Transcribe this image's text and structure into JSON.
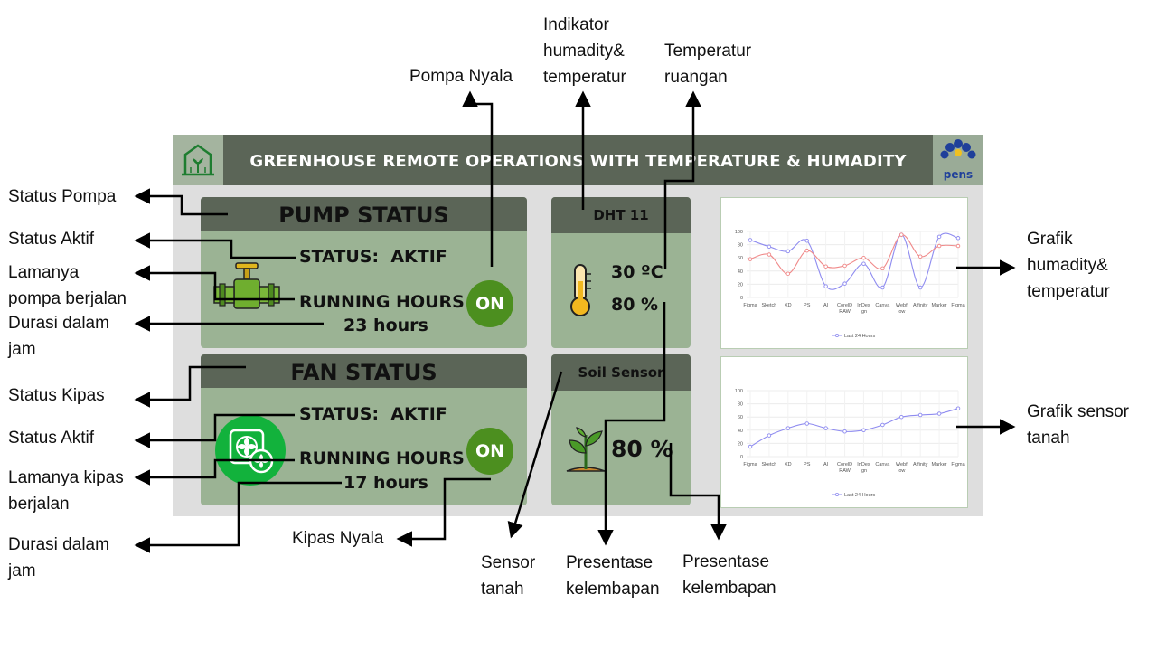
{
  "dashboard": {
    "title": "GREENHOUSE REMOTE OPERATIONS WITH TEMPERATURE & HUMADITY",
    "logo_right_text": "pens",
    "pump": {
      "title": "PUMP STATUS",
      "status_label": "STATUS:",
      "status_value": "AKTIF",
      "running_label": "RUNNING HOURS",
      "running_value": "23 hours",
      "button": "ON"
    },
    "fan": {
      "title": "FAN STATUS",
      "status_label": "STATUS:",
      "status_value": "AKTIF",
      "running_label": "RUNNING HOURS",
      "running_value": "17 hours",
      "button": "ON"
    },
    "dht": {
      "title": "DHT 11",
      "temperature": "30 ºC",
      "humidity": "80 %"
    },
    "soil": {
      "title": "Soil Sensor",
      "moisture": "80 %"
    }
  },
  "annotations": {
    "pompa_nyala": "Pompa Nyala",
    "indikator_1": "Indikator",
    "indikator_2": "humadity&",
    "indikator_3": "temperatur",
    "temperatur_1": "Temperatur",
    "temperatur_2": "ruangan",
    "status_pompa": "Status Pompa",
    "status_aktif_1": "Status Aktif",
    "lamanya_pompa_1": "Lamanya",
    "lamanya_pompa_2": "pompa berjalan",
    "durasi_1a": "Durasi dalam",
    "durasi_1b": "jam",
    "status_kipas": "Status Kipas",
    "status_aktif_2": "Status Aktif",
    "lamanya_kipas_1": "Lamanya kipas",
    "lamanya_kipas_2": "berjalan",
    "durasi_2a": "Durasi dalam",
    "durasi_2b": "jam",
    "kipas_nyala": "Kipas Nyala",
    "sensor_tanah_1": "Sensor",
    "sensor_tanah_2": "tanah",
    "presentase_1a": "Presentase",
    "presentase_1b": "kelembapan",
    "presentase_2a": "Presentase",
    "presentase_2b": "kelembapan",
    "grafik_hum_1": "Grafik",
    "grafik_hum_2": "humadity&",
    "grafik_hum_3": "temperatur",
    "grafik_tanah_1": "Grafik sensor",
    "grafik_tanah_2": "tanah"
  },
  "chart_data": [
    {
      "type": "line",
      "categories": [
        "Figma",
        "Sketch",
        "XD",
        "PS",
        "AI",
        "CorelD RAW",
        "InDes ign",
        "Canva",
        "Webf low",
        "Affinity",
        "Marker",
        "Figma"
      ],
      "ylim": [
        0,
        100
      ],
      "yticks": [
        0,
        20,
        40,
        60,
        80,
        100
      ],
      "series": [
        {
          "name": "Last 24 Hours",
          "color": "#8f8cf0",
          "values": [
            87,
            77,
            70,
            86,
            17,
            21,
            51,
            15,
            95,
            15,
            92,
            90
          ]
        },
        {
          "color": "#f08a8a",
          "values": [
            58,
            65,
            36,
            71,
            47,
            48,
            60,
            44,
            95,
            62,
            78,
            78
          ]
        }
      ],
      "legend": "bottom"
    },
    {
      "type": "line",
      "categories": [
        "Figma",
        "Sketch",
        "XD",
        "PS",
        "AI",
        "CorelD RAW",
        "InDes ign",
        "Canva",
        "Webf low",
        "Affinity",
        "Marker",
        "Figma"
      ],
      "ylim": [
        0,
        100
      ],
      "yticks": [
        0,
        20,
        40,
        60,
        80,
        100
      ],
      "series": [
        {
          "name": "Last 24 Hours",
          "color": "#8f8cf0",
          "values": [
            15,
            32,
            43,
            50,
            43,
            38,
            40,
            48,
            60,
            63,
            65,
            73
          ]
        }
      ],
      "legend": "bottom"
    }
  ]
}
